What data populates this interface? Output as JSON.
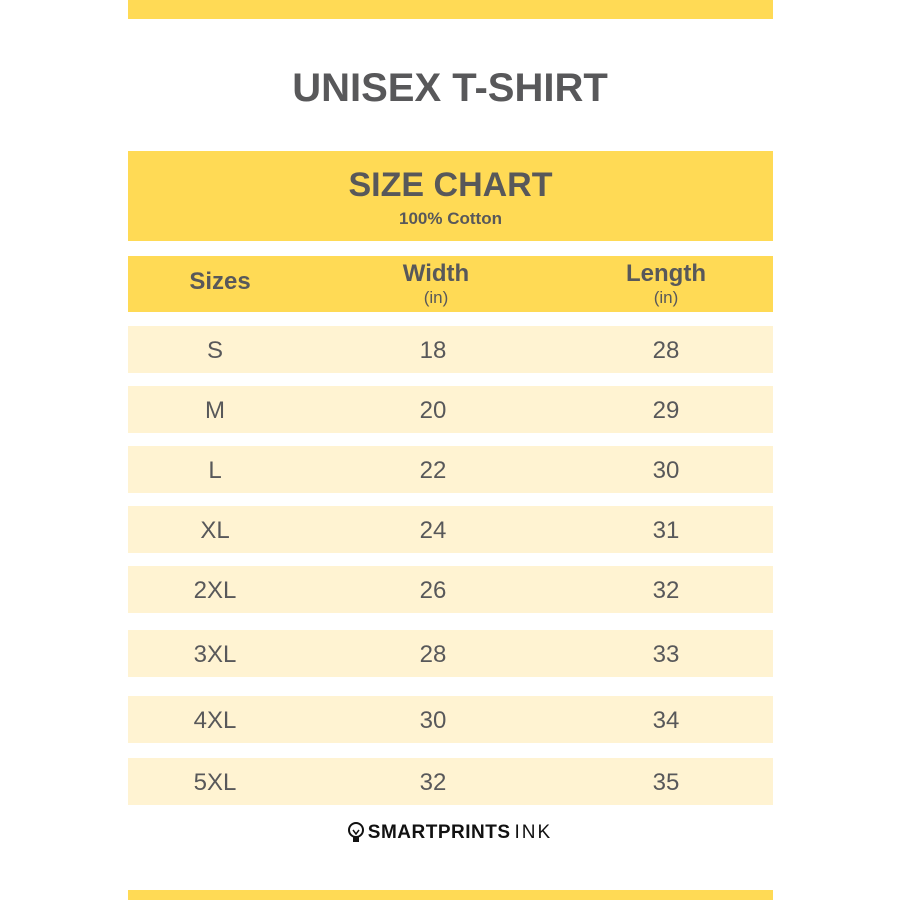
{
  "title": "UNISEX T-SHIRT",
  "header": {
    "title": "SIZE CHART",
    "subtitle": "100% Cotton"
  },
  "columns": [
    {
      "label": "Sizes",
      "unit": ""
    },
    {
      "label": "Width",
      "unit": "(in)"
    },
    {
      "label": "Length",
      "unit": "(in)"
    }
  ],
  "rows": [
    {
      "size": "S",
      "width": "18",
      "length": "28"
    },
    {
      "size": "M",
      "width": "20",
      "length": "29"
    },
    {
      "size": "L",
      "width": "22",
      "length": "30"
    },
    {
      "size": "XL",
      "width": "24",
      "length": "31"
    },
    {
      "size": "2XL",
      "width": "26",
      "length": "32"
    },
    {
      "size": "3XL",
      "width": "28",
      "length": "33"
    },
    {
      "size": "4XL",
      "width": "30",
      "length": "34"
    },
    {
      "size": "5XL",
      "width": "32",
      "length": "35"
    }
  ],
  "logo": {
    "bold": "SMARTPRINTS",
    "light": "INK"
  },
  "colors": {
    "yellow": "#ffda55",
    "row": "#fff3d2",
    "text": "#58585a"
  }
}
